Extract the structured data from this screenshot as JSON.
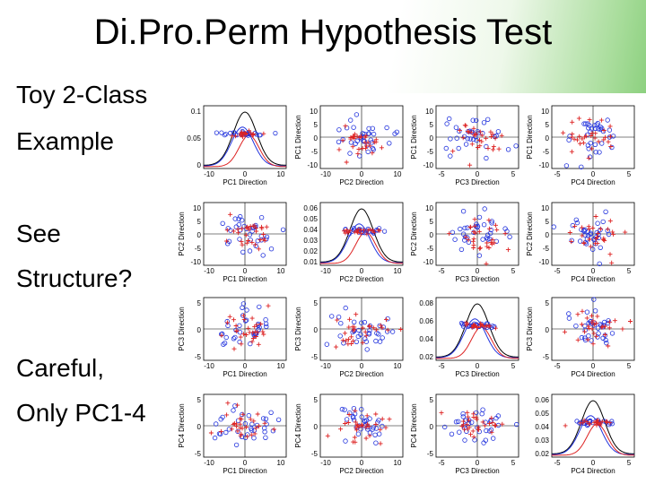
{
  "slide": {
    "title": "Di.Pro.Perm Hypothesis Test",
    "bullets": [
      "Toy 2-Class",
      "Example",
      "See",
      "Structure?",
      "Careful,",
      "Only PC1-4"
    ]
  },
  "colors": {
    "class1": "#2233dd",
    "class2": "#dd2222",
    "pooled": "#000000"
  },
  "chart_data": {
    "type": "scatter",
    "layout": "4x4 scatterplot matrix, diagonal = density curves",
    "row_labels": [
      "PC1 Direction",
      "PC2 Direction",
      "PC3 Direction",
      "PC4 Direction"
    ],
    "col_labels": [
      "PC1 Direction",
      "PC2 Direction",
      "PC3 Direction",
      "PC4 Direction"
    ],
    "markers": {
      "class1": "circle",
      "class2": "plus"
    },
    "panels": [
      {
        "r": 0,
        "c": 0,
        "kind": "density",
        "xlim": [
          -10,
          10
        ],
        "xticks": [
          "-10",
          "0",
          "10"
        ],
        "ylim": [
          0,
          0.12
        ],
        "yticks": [
          "0.1",
          "0.05",
          "0"
        ]
      },
      {
        "r": 0,
        "c": 1,
        "kind": "scatter",
        "xlim": [
          -10,
          10
        ],
        "xticks": [
          "-10",
          "0",
          "10"
        ],
        "ylim": [
          -12,
          12
        ],
        "yticks": [
          "10",
          "5",
          "0",
          "-5",
          "-10"
        ]
      },
      {
        "r": 0,
        "c": 2,
        "kind": "scatter",
        "xlim": [
          -7,
          7
        ],
        "xticks": [
          "-5",
          "0",
          "5"
        ],
        "ylim": [
          -12,
          12
        ],
        "yticks": [
          "10",
          "5",
          "0",
          "-5",
          "-10"
        ]
      },
      {
        "r": 0,
        "c": 3,
        "kind": "scatter",
        "xlim": [
          -7,
          7
        ],
        "xticks": [
          "-5",
          "0",
          "5"
        ],
        "ylim": [
          -12,
          12
        ],
        "yticks": [
          "10",
          "5",
          "0",
          "-5",
          "-10"
        ]
      },
      {
        "r": 1,
        "c": 0,
        "kind": "scatter",
        "xlim": [
          -10,
          10
        ],
        "xticks": [
          "-10",
          "0",
          "10"
        ],
        "ylim": [
          -12,
          12
        ],
        "yticks": [
          "10",
          "5",
          "0",
          "-5",
          "-10"
        ]
      },
      {
        "r": 1,
        "c": 1,
        "kind": "density",
        "xlim": [
          -10,
          10
        ],
        "xticks": [
          "-10",
          "0",
          "10"
        ],
        "ylim": [
          0,
          0.07
        ],
        "yticks": [
          "0.06",
          "0.05",
          "0.04",
          "0.03",
          "0.02",
          "0.01"
        ]
      },
      {
        "r": 1,
        "c": 2,
        "kind": "scatter",
        "xlim": [
          -7,
          7
        ],
        "xticks": [
          "-5",
          "0",
          "5"
        ],
        "ylim": [
          -12,
          12
        ],
        "yticks": [
          "10",
          "5",
          "0",
          "-5",
          "-10"
        ]
      },
      {
        "r": 1,
        "c": 3,
        "kind": "scatter",
        "xlim": [
          -7,
          7
        ],
        "xticks": [
          "-5",
          "0",
          "5"
        ],
        "ylim": [
          -12,
          12
        ],
        "yticks": [
          "10",
          "5",
          "0",
          "-5",
          "-10"
        ]
      },
      {
        "r": 2,
        "c": 0,
        "kind": "scatter",
        "xlim": [
          -10,
          10
        ],
        "xticks": [
          "-10",
          "0",
          "10"
        ],
        "ylim": [
          -7,
          7
        ],
        "yticks": [
          "5",
          "0",
          "-5"
        ]
      },
      {
        "r": 2,
        "c": 1,
        "kind": "scatter",
        "xlim": [
          -10,
          10
        ],
        "xticks": [
          "-10",
          "0",
          "10"
        ],
        "ylim": [
          -7,
          7
        ],
        "yticks": [
          "5",
          "0",
          "-5"
        ]
      },
      {
        "r": 2,
        "c": 2,
        "kind": "density",
        "xlim": [
          -7,
          7
        ],
        "xticks": [
          "-5",
          "0",
          "5"
        ],
        "ylim": [
          0,
          0.1
        ],
        "yticks": [
          "0.08",
          "0.06",
          "0.04",
          "0.02"
        ]
      },
      {
        "r": 2,
        "c": 3,
        "kind": "scatter",
        "xlim": [
          -7,
          7
        ],
        "xticks": [
          "-5",
          "0",
          "5"
        ],
        "ylim": [
          -7,
          7
        ],
        "yticks": [
          "5",
          "0",
          "-5"
        ]
      },
      {
        "r": 3,
        "c": 0,
        "kind": "scatter",
        "xlim": [
          -10,
          10
        ],
        "xticks": [
          "-10",
          "0",
          "10"
        ],
        "ylim": [
          -7,
          7
        ],
        "yticks": [
          "5",
          "0",
          "-5"
        ]
      },
      {
        "r": 3,
        "c": 1,
        "kind": "scatter",
        "xlim": [
          -10,
          10
        ],
        "xticks": [
          "-10",
          "0",
          "10"
        ],
        "ylim": [
          -7,
          7
        ],
        "yticks": [
          "5",
          "0",
          "-5"
        ]
      },
      {
        "r": 3,
        "c": 2,
        "kind": "scatter",
        "xlim": [
          -7,
          7
        ],
        "xticks": [
          "-5",
          "0",
          "5"
        ],
        "ylim": [
          -7,
          7
        ],
        "yticks": [
          "5",
          "0",
          "-5"
        ]
      },
      {
        "r": 3,
        "c": 3,
        "kind": "density",
        "xlim": [
          -7,
          7
        ],
        "xticks": [
          "-5",
          "0",
          "5"
        ],
        "ylim": [
          0,
          0.07
        ],
        "yticks": [
          "0.06",
          "0.05",
          "0.04",
          "0.03",
          "0.02"
        ]
      }
    ]
  }
}
